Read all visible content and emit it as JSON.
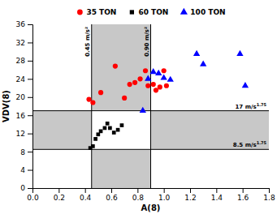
{
  "chart_data": {
    "type": "scatter",
    "xlabel": "A(8)",
    "ylabel": "VDV(8)",
    "xlim": [
      0.0,
      1.8
    ],
    "ylim": [
      0,
      36
    ],
    "xticks": [
      {
        "value": 0.0,
        "label": "0.0"
      },
      0.2,
      0.4,
      0.6,
      0.8,
      {
        "value": 1.0,
        "label": "1.0"
      },
      1.2,
      1.4,
      1.6,
      1.8
    ],
    "yticks": [
      0,
      4,
      8,
      12,
      16,
      20,
      24,
      28,
      32,
      36
    ],
    "series": [
      {
        "name": "35 TON",
        "color": "red",
        "marker": "circle",
        "x": [
          0.43,
          0.46,
          0.52,
          0.63,
          0.7,
          0.74,
          0.78,
          0.82,
          0.86,
          0.88,
          0.92,
          0.94,
          0.97,
          1.0,
          1.02
        ],
        "values": [
          19.5,
          18.8,
          21.0,
          26.8,
          19.8,
          22.8,
          23.2,
          24.0,
          25.8,
          22.5,
          22.8,
          21.5,
          22.2,
          25.8,
          22.5
        ]
      },
      {
        "name": "60 TON",
        "color": "black",
        "marker": "square",
        "x": [
          0.44,
          0.46,
          0.48,
          0.5,
          0.52,
          0.55,
          0.57,
          0.59,
          0.62,
          0.65,
          0.68
        ],
        "values": [
          8.8,
          9.2,
          10.8,
          11.8,
          12.5,
          13.2,
          14.2,
          13.2,
          12.2,
          12.8,
          13.8
        ]
      },
      {
        "name": "100 TON",
        "color": "blue",
        "marker": "triangle",
        "x": [
          0.84,
          0.88,
          0.92,
          0.96,
          1.0,
          1.05,
          1.25,
          1.3,
          1.58,
          1.62
        ],
        "values": [
          17.0,
          24.0,
          25.5,
          25.2,
          24.2,
          23.8,
          29.5,
          27.2,
          29.5,
          22.5
        ]
      }
    ],
    "regions": [
      {
        "x": [
          0.45,
          0.9
        ],
        "color": "#c8c8c8"
      },
      {
        "y": [
          8.5,
          17.0
        ],
        "color": "#c8c8c8"
      },
      {
        "x": [
          0.45,
          0.9
        ],
        "y": [
          8.5,
          17.0
        ],
        "color": "#ffffff"
      }
    ],
    "lines": [
      {
        "x": 0.45,
        "label": "0.45 m/s²"
      },
      {
        "x": 0.9,
        "label": "0.90 m/s²"
      },
      {
        "y": 17.0,
        "label": "17 m/s",
        "sup": "1.75"
      },
      {
        "y": 8.5,
        "label": "8.5 m/s",
        "sup": "1.75"
      }
    ]
  }
}
